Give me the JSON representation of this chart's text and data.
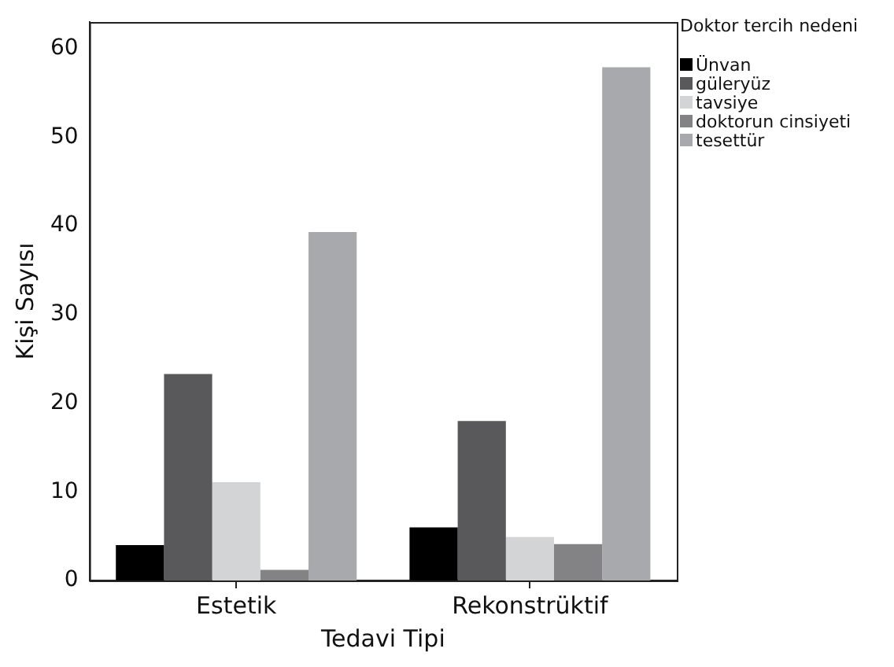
{
  "chart_data": {
    "type": "bar",
    "xlabel": "Tedavi Tipi",
    "ylabel": "Kişi Sayısı",
    "legend_title": "Doktor tercih nedeni",
    "legend": "top right",
    "grid": false,
    "categories": [
      "Estetik",
      "Rekonstrüktif"
    ],
    "series": [
      {
        "name": "Ünvan",
        "color": "#000000",
        "values": [
          4,
          6
        ]
      },
      {
        "name": "güleryüz",
        "color": "#59595b",
        "values": [
          23.3,
          18
        ]
      },
      {
        "name": "tavsiye",
        "color": "#d3d4d5",
        "values": [
          11.1,
          4.9
        ]
      },
      {
        "name": "doktorun cinsiyeti",
        "color": "#838386",
        "values": [
          1.2,
          4.1
        ]
      },
      {
        "name": "tesettür",
        "color": "#a8a9ac",
        "values": [
          39.3,
          57.9
        ]
      }
    ],
    "ylim": [
      0,
      63
    ],
    "yticks": [
      0,
      10,
      20,
      30,
      40,
      50,
      60
    ]
  }
}
